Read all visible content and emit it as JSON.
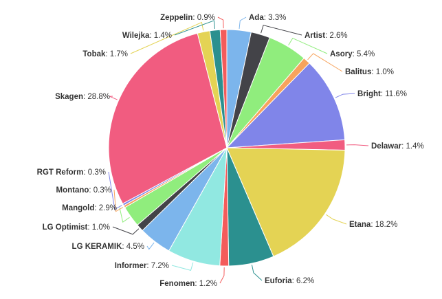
{
  "chart_data": {
    "type": "pie",
    "title": "",
    "slices": [
      {
        "name": "Ada",
        "value": 3.3,
        "label": "3.3%",
        "color": "#7cb5ec"
      },
      {
        "name": "Artist",
        "value": 2.6,
        "label": "2.6%",
        "color": "#434348"
      },
      {
        "name": "Asory",
        "value": 5.4,
        "label": "5.4%",
        "color": "#90ed7d"
      },
      {
        "name": "Balitus",
        "value": 1.0,
        "label": "1.0%",
        "color": "#f7a35c"
      },
      {
        "name": "Bright",
        "value": 11.6,
        "label": "11.6%",
        "color": "#8085e9"
      },
      {
        "name": "Delawar",
        "value": 1.4,
        "label": "1.4%",
        "color": "#f15c80"
      },
      {
        "name": "Etana",
        "value": 18.2,
        "label": "18.2%",
        "color": "#e4d354"
      },
      {
        "name": "Euforia",
        "value": 6.2,
        "label": "6.2%",
        "color": "#2b908f"
      },
      {
        "name": "Fenomen",
        "value": 1.2,
        "label": "1.2%",
        "color": "#f45b5b"
      },
      {
        "name": "Informer",
        "value": 7.2,
        "label": "7.2%",
        "color": "#91e8e1"
      },
      {
        "name": "LG KERAMIK",
        "value": 4.5,
        "label": "4.5%",
        "color": "#7cb5ec"
      },
      {
        "name": "LG Optimist",
        "value": 1.0,
        "label": "1.0%",
        "color": "#434348"
      },
      {
        "name": "Mangold",
        "value": 2.9,
        "label": "2.9%",
        "color": "#90ed7d"
      },
      {
        "name": "Montano",
        "value": 0.3,
        "label": "0.3%",
        "color": "#f7a35c"
      },
      {
        "name": "RGT Reform",
        "value": 0.3,
        "label": "0.3%",
        "color": "#8085e9"
      },
      {
        "name": "Skagen",
        "value": 28.8,
        "label": "28.8%",
        "color": "#f15c80"
      },
      {
        "name": "Tobak",
        "value": 1.7,
        "label": "1.7%",
        "color": "#e4d354"
      },
      {
        "name": "Wilejka",
        "value": 1.4,
        "label": "1.4%",
        "color": "#2b908f"
      },
      {
        "name": "Zeppelin",
        "value": 0.9,
        "label": "0.9%",
        "color": "#f45b5b"
      }
    ]
  }
}
